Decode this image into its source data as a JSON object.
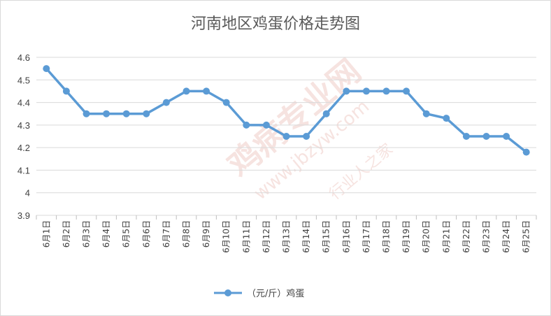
{
  "chart_data": {
    "type": "line",
    "title": "河南地区鸡蛋价格走势图",
    "xlabel": "",
    "ylabel": "",
    "categories": [
      "6月1日",
      "6月2日",
      "6月3日",
      "6月4日",
      "6月5日",
      "6月6日",
      "6月7日",
      "6月8日",
      "6月9日",
      "6月10日",
      "6月11日",
      "6月12日",
      "6月13日",
      "6月14日",
      "6月15日",
      "6月16日",
      "6月17日",
      "6月18日",
      "6月19日",
      "6月20日",
      "6月21日",
      "6月22日",
      "6月23日",
      "6月24日",
      "6月25日"
    ],
    "series": [
      {
        "name": "（元/斤）鸡蛋",
        "color": "#5b9bd5",
        "values": [
          4.55,
          4.45,
          4.35,
          4.35,
          4.35,
          4.35,
          4.4,
          4.45,
          4.45,
          4.4,
          4.3,
          4.3,
          4.25,
          4.25,
          4.35,
          4.45,
          4.45,
          4.45,
          4.45,
          4.35,
          4.33,
          4.25,
          4.25,
          4.25,
          4.18
        ]
      }
    ],
    "ylim": [
      3.9,
      4.6
    ],
    "yticks": [
      "3.9",
      "4",
      "4.1",
      "4.2",
      "4.3",
      "4.4",
      "4.5",
      "4.6"
    ],
    "grid": true,
    "legend": "bottom",
    "watermark": [
      "鸡病专业网",
      "www.jbzyw.com",
      "行业人之家"
    ]
  }
}
